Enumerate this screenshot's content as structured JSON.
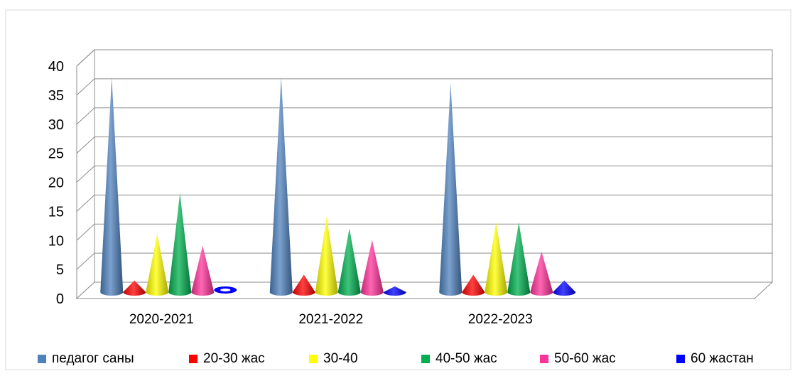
{
  "chart_data": {
    "type": "bar",
    "shape": "cone",
    "categories": [
      "2020-2021",
      "2021-2022",
      "2022-2023",
      ""
    ],
    "ylim": [
      0,
      40
    ],
    "yticks": [
      0,
      5,
      10,
      15,
      20,
      25,
      30,
      35,
      40
    ],
    "grid": true,
    "legend_position": "bottom",
    "series": [
      {
        "name": "педагог саны",
        "color": "#4F81BD",
        "values": [
          37,
          37,
          36,
          null
        ]
      },
      {
        "name": "20-30 жас",
        "color": "#FF0000",
        "values": [
          2,
          3,
          3,
          null
        ]
      },
      {
        "name": "30-40",
        "color": "#FFFF00",
        "values": [
          10,
          13,
          12,
          null
        ]
      },
      {
        "name": "40-50 жас",
        "color": "#00B050",
        "values": [
          17,
          11,
          12,
          null
        ]
      },
      {
        "name": "50-60 жас",
        "color": "#FF3399",
        "values": [
          8,
          9,
          7,
          null
        ]
      },
      {
        "name": "60 жастан",
        "color": "#0000FF",
        "values": [
          0,
          1,
          2,
          null
        ]
      }
    ]
  }
}
